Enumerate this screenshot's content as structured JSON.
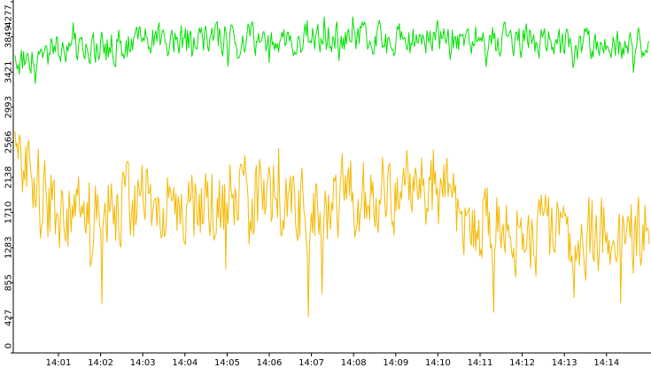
{
  "chart_data": {
    "type": "line",
    "title": "",
    "xlabel": "",
    "ylabel": "",
    "grid": false,
    "legend": "none",
    "ylim": [
      0,
      4277
    ],
    "y_ticks": [
      0,
      427,
      855,
      1283,
      1710,
      2138,
      2566,
      2993,
      3421,
      3849,
      4277
    ],
    "x_ticks": [
      "14:01",
      "14:02",
      "14:03",
      "14:04",
      "14:05",
      "14:06",
      "14:07",
      "14:08",
      "14:09",
      "14:10",
      "14:11",
      "14:12",
      "14:13",
      "14:14"
    ],
    "x_range_minutes": [
      14.0,
      14.25
    ],
    "series": [
      {
        "color": "#00e000",
        "samples_per_minute": 40,
        "mean_level": [
          3550,
          3700,
          3720,
          3780,
          3800,
          3820,
          3830,
          3800,
          3830,
          3840,
          3850,
          3830,
          3790,
          3760,
          3740
        ],
        "range_min": 3280,
        "range_max": 4240
      },
      {
        "color": "#f5b800",
        "samples_per_minute": 40,
        "mean_level": [
          2450,
          1650,
          1720,
          1900,
          1750,
          1850,
          1900,
          1700,
          1950,
          1950,
          2000,
          1600,
          1500,
          1400,
          1450
        ],
        "range_min": 350,
        "range_max": 2800
      }
    ]
  }
}
